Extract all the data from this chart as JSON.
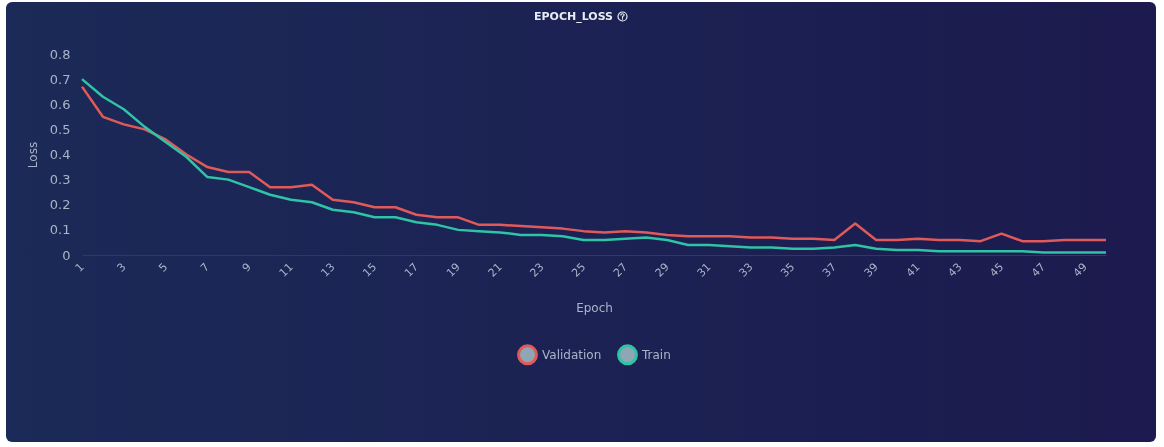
{
  "chart_data": {
    "type": "line",
    "title": "EPOCH_LOSS",
    "xlabel": "Epoch",
    "ylabel": "Loss",
    "x": [
      1,
      2,
      3,
      4,
      5,
      6,
      7,
      8,
      9,
      10,
      11,
      12,
      13,
      14,
      15,
      16,
      17,
      18,
      19,
      20,
      21,
      22,
      23,
      24,
      25,
      26,
      27,
      28,
      29,
      30,
      31,
      32,
      33,
      34,
      35,
      36,
      37,
      38,
      39,
      40,
      41,
      42,
      43,
      44,
      45,
      46,
      47,
      48,
      49,
      50
    ],
    "series": [
      {
        "name": "Validation",
        "color": "#e05a5a",
        "values": [
          0.67,
          0.55,
          0.52,
          0.5,
          0.46,
          0.4,
          0.35,
          0.33,
          0.33,
          0.27,
          0.27,
          0.28,
          0.22,
          0.21,
          0.19,
          0.19,
          0.16,
          0.15,
          0.15,
          0.12,
          0.12,
          0.115,
          0.11,
          0.105,
          0.095,
          0.09,
          0.095,
          0.09,
          0.08,
          0.075,
          0.075,
          0.075,
          0.07,
          0.07,
          0.065,
          0.065,
          0.06,
          0.125,
          0.06,
          0.06,
          0.065,
          0.06,
          0.06,
          0.055,
          0.085,
          0.055,
          0.055,
          0.06,
          0.06,
          0.06
        ]
      },
      {
        "name": "Train",
        "color": "#2ec4a5",
        "values": [
          0.7,
          0.63,
          0.58,
          0.51,
          0.45,
          0.39,
          0.31,
          0.3,
          0.27,
          0.24,
          0.22,
          0.21,
          0.18,
          0.17,
          0.15,
          0.15,
          0.13,
          0.12,
          0.1,
          0.095,
          0.09,
          0.08,
          0.08,
          0.075,
          0.06,
          0.06,
          0.065,
          0.07,
          0.06,
          0.04,
          0.04,
          0.035,
          0.03,
          0.03,
          0.025,
          0.025,
          0.03,
          0.04,
          0.025,
          0.02,
          0.02,
          0.015,
          0.015,
          0.015,
          0.015,
          0.015,
          0.01,
          0.01,
          0.01,
          0.01
        ]
      }
    ],
    "xlim": [
      1,
      50
    ],
    "xticks": [
      1,
      3,
      5,
      7,
      9,
      11,
      13,
      15,
      17,
      19,
      21,
      23,
      25,
      27,
      29,
      31,
      33,
      35,
      37,
      39,
      41,
      43,
      45,
      47,
      49
    ],
    "ylim": [
      0,
      0.8
    ],
    "yticks": [
      0,
      0.1,
      0.2,
      0.3,
      0.4,
      0.5,
      0.6,
      0.7,
      0.8
    ],
    "legend": "bottom"
  }
}
